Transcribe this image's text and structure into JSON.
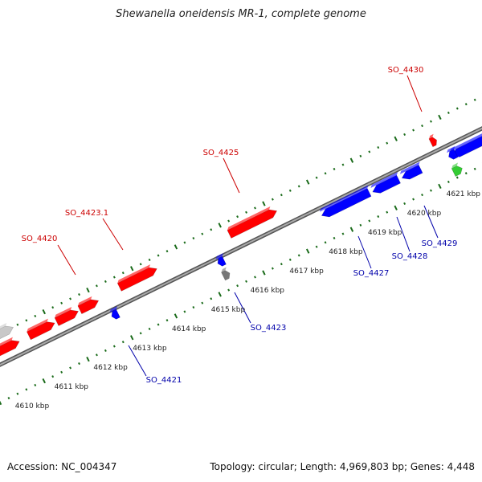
{
  "title": "Shewanella oneidensis MR-1, complete genome",
  "footer": {
    "accession": "Accession: NC_004347",
    "summary": "Topology: circular; Length: 4,969,803 bp; Genes: 4,448"
  },
  "colors": {
    "forward_gene": "#ff0000",
    "reverse_gene": "#0000ff",
    "forward_label": "#cc0000",
    "reverse_label": "#0000aa",
    "rna_gene": "#33cc33",
    "pseudo_gene": "#c8c8c8",
    "other_gene": "#777777",
    "tick": "#1a6b1a",
    "backbone": "#888888"
  },
  "scale_labels": [
    "4610 kbp",
    "4611 kbp",
    "4612 kbp",
    "4613 kbp",
    "4614 kbp",
    "4615 kbp",
    "4616 kbp",
    "4617 kbp",
    "4618 kbp",
    "4619 kbp",
    "4620 kbp",
    "4621 kbp"
  ],
  "forward_labels": [
    "SO_4420",
    "SO_4423.1",
    "SO_4425",
    "SO_4430"
  ],
  "reverse_labels": [
    "SO_4421",
    "SO_4423",
    "SO_4427",
    "SO_4428",
    "SO_4429"
  ]
}
